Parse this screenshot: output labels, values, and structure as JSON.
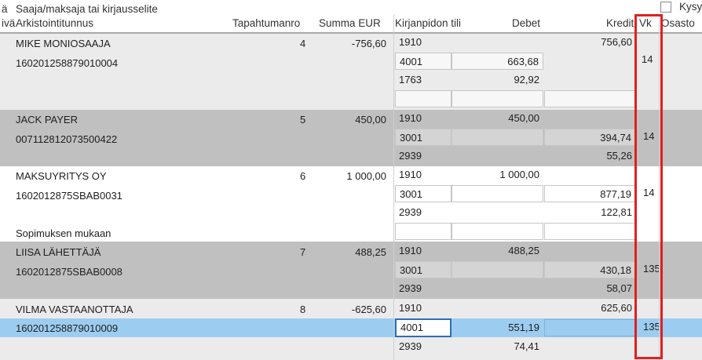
{
  "header": {
    "col0_top": "ä",
    "col0_bottom": "ivä",
    "payee_title": "Saaja/maksaja tai kirjausselite",
    "archive_id": "Arkistointitunnus",
    "transaction_no": "Tapahtumanro",
    "amount": "Summa EUR",
    "account": "Kirjanpidon tili",
    "debit": "Debet",
    "credit": "Kredit",
    "vk": "Vk",
    "department": "Osasto",
    "ask_checkbox_label": "Kysy"
  },
  "colors": {
    "band_light": "#ebebeb",
    "band_dark": "#c0c0c0",
    "band_white": "#ffffff",
    "selected": "#9ccdf0",
    "highlight_outline": "#e02020"
  },
  "entries": [
    {
      "payee": "MIKE MONIOSAAJA",
      "archive": "160201258879010004",
      "number": "4",
      "amount": "-756,60",
      "lines": [
        {
          "account": "1910",
          "debit": "",
          "credit": "756,60",
          "vk": ""
        },
        {
          "account": "4001",
          "debit": "663,68",
          "credit": "",
          "vk": "14"
        },
        {
          "account": "1763",
          "debit": "92,92",
          "credit": "",
          "vk": ""
        },
        {
          "account": "",
          "debit": "",
          "credit": "",
          "vk": ""
        }
      ]
    },
    {
      "payee": "JACK PAYER",
      "archive": "007112812073500422",
      "number": "5",
      "amount": "450,00",
      "lines": [
        {
          "account": "1910",
          "debit": "450,00",
          "credit": "",
          "vk": ""
        },
        {
          "account": "3001",
          "debit": "",
          "credit": "394,74",
          "vk": "14"
        },
        {
          "account": "2939",
          "debit": "",
          "credit": "55,26",
          "vk": ""
        }
      ]
    },
    {
      "payee": "MAKSUYRITYS OY",
      "archive": "1602012875SBAB0031",
      "number": "6",
      "amount": "1 000,00",
      "note": "Sopimuksen mukaan",
      "lines": [
        {
          "account": "1910",
          "debit": "1 000,00",
          "credit": "",
          "vk": ""
        },
        {
          "account": "3001",
          "debit": "",
          "credit": "877,19",
          "vk": "14"
        },
        {
          "account": "2939",
          "debit": "",
          "credit": "122,81",
          "vk": ""
        },
        {
          "account": "",
          "debit": "",
          "credit": "",
          "vk": ""
        }
      ]
    },
    {
      "payee": "LIISA LÄHETTÄJÄ",
      "archive": "1602012875SBAB0008",
      "number": "7",
      "amount": "488,25",
      "lines": [
        {
          "account": "1910",
          "debit": "488,25",
          "credit": "",
          "vk": ""
        },
        {
          "account": "3001",
          "debit": "",
          "credit": "430,18",
          "vk": "135"
        },
        {
          "account": "2939",
          "debit": "",
          "credit": "58,07",
          "vk": ""
        }
      ]
    },
    {
      "payee": "VILMA VASTAANOTTAJA",
      "archive": "160201258879010009",
      "number": "8",
      "amount": "-625,60",
      "lines": [
        {
          "account": "1910",
          "debit": "",
          "credit": "625,60",
          "vk": ""
        },
        {
          "account": "4001",
          "debit": "551,19",
          "credit": "",
          "vk": "135"
        },
        {
          "account": "2939",
          "debit": "74,41",
          "credit": "",
          "vk": ""
        }
      ]
    }
  ]
}
